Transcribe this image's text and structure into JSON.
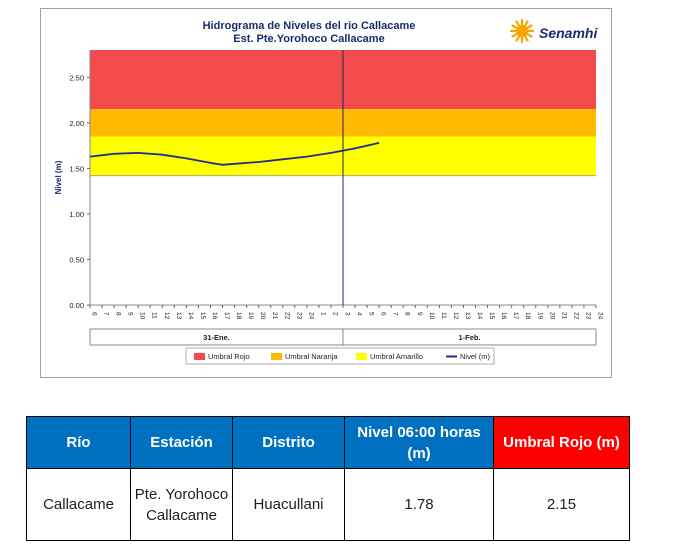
{
  "colors": {
    "umbral_rojo": "#f24b4b",
    "umbral_naranja": "#ffb900",
    "umbral_amarillo": "#ffff00",
    "nivel_line": "#1f2c8f",
    "table_header": "#0070c0",
    "table_header_red": "#ff0000"
  },
  "logo": {
    "text": "Senamhi",
    "icon": "sun-logo-icon"
  },
  "chart_data": {
    "type": "line",
    "title": "Hidrograma de Niveles del rio Callacame",
    "subtitle": "Est. Pte.Yorohoco Callacame",
    "ylabel": "Nivel (m)",
    "ylim": [
      0,
      2.8
    ],
    "yticks": [
      "0.00",
      "0.50",
      "1.00",
      "1.50",
      "2.00",
      "2.50"
    ],
    "x_hour_labels": [
      "6",
      "7",
      "8",
      "9",
      "10",
      "11",
      "12",
      "13",
      "14",
      "15",
      "16",
      "17",
      "18",
      "19",
      "20",
      "21",
      "22",
      "23",
      "24",
      "1",
      "2",
      "3",
      "4",
      "5",
      "6",
      "7",
      "8",
      "9",
      "10",
      "11",
      "12",
      "13",
      "14",
      "15",
      "16",
      "17",
      "18",
      "19",
      "20",
      "21",
      "22",
      "23",
      "24"
    ],
    "day_labels": [
      "31-Ene.",
      "1-Feb."
    ],
    "thresholds": [
      {
        "name": "Umbral Rojo",
        "from": 2.15,
        "to": 2.8
      },
      {
        "name": "Umbral Naranja",
        "from": 1.85,
        "to": 2.15
      },
      {
        "name": "Umbral Amarillo",
        "from": 1.42,
        "to": 1.85
      }
    ],
    "series": [
      {
        "name": "Nivel (m)",
        "x": [
          0,
          2,
          4,
          6,
          8,
          10,
          11,
          12,
          14,
          16,
          18,
          20,
          22,
          24
        ],
        "y": [
          1.63,
          1.66,
          1.67,
          1.65,
          1.61,
          1.56,
          1.54,
          1.55,
          1.57,
          1.6,
          1.63,
          1.67,
          1.72,
          1.78
        ]
      }
    ],
    "legend": [
      "Umbral Rojo",
      "Umbral Naranja",
      "Umbral Amarillo",
      "Nivel (m)"
    ],
    "legend_position": "bottom",
    "grid": false
  },
  "table": {
    "headers": [
      "Río",
      "Estación",
      "Distrito",
      "Nivel  06:00 horas (m)",
      "Umbral Rojo (m)"
    ],
    "row": [
      "Callacame",
      "Pte. Yorohoco Callacame",
      "Huacullani",
      "1.78",
      "2.15"
    ]
  }
}
